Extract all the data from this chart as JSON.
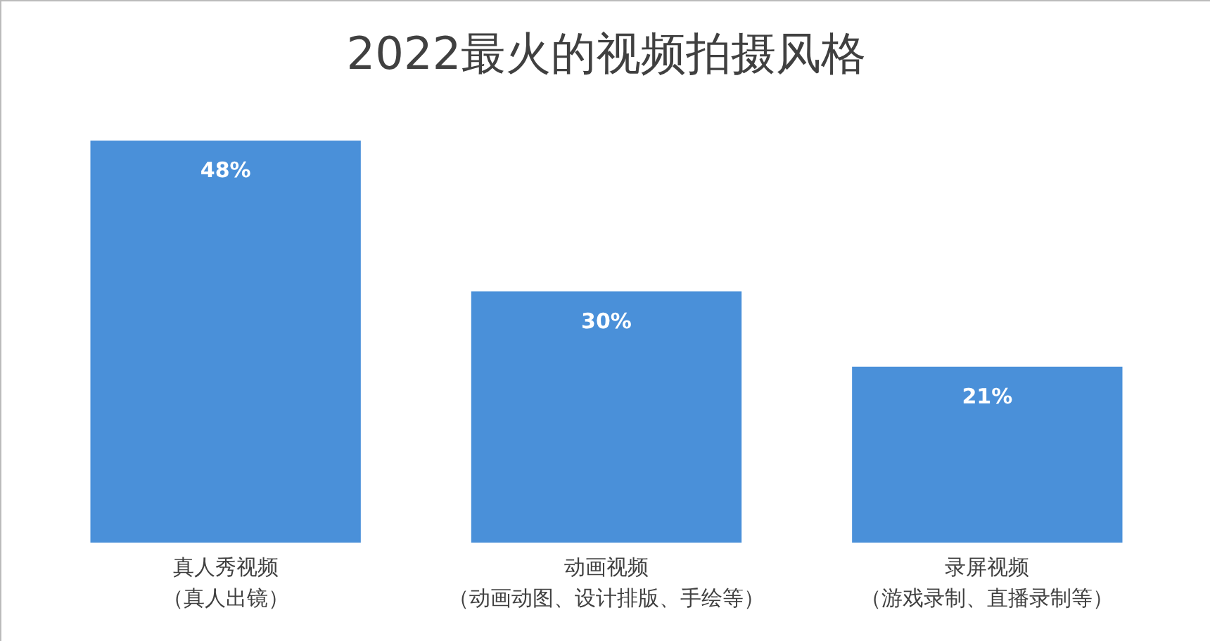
{
  "chart_data": {
    "type": "bar",
    "title": "2022最火的视频拍摄风格",
    "categories": [
      "真人秀视频（真人出镜）",
      "动画视频（动画动图、设计排版、手绘等）",
      "录屏视频（游戏录制、直播录制等）"
    ],
    "values": [
      48,
      30,
      21
    ],
    "value_labels": [
      "48%",
      "30%",
      "21%"
    ],
    "color": "#4a90d9"
  }
}
